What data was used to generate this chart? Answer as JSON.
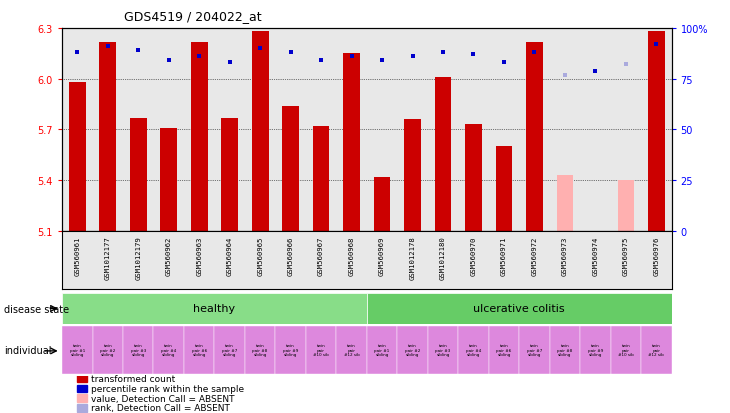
{
  "title": "GDS4519 / 204022_at",
  "samples": [
    "GSM560961",
    "GSM1012177",
    "GSM1012179",
    "GSM560962",
    "GSM560963",
    "GSM560964",
    "GSM560965",
    "GSM560966",
    "GSM560967",
    "GSM560968",
    "GSM560969",
    "GSM1012178",
    "GSM1012180",
    "GSM560970",
    "GSM560971",
    "GSM560972",
    "GSM560973",
    "GSM560974",
    "GSM560975",
    "GSM560976"
  ],
  "bar_values": [
    5.98,
    6.22,
    5.77,
    5.71,
    6.22,
    5.77,
    6.28,
    5.84,
    5.72,
    6.15,
    5.42,
    5.76,
    6.01,
    5.73,
    5.6,
    6.22,
    5.43,
    5.1,
    5.4,
    6.28
  ],
  "bar_absent": [
    false,
    false,
    false,
    false,
    false,
    false,
    false,
    false,
    false,
    false,
    false,
    false,
    false,
    false,
    false,
    false,
    true,
    true,
    true,
    false
  ],
  "rank_values": [
    88,
    91,
    89,
    84,
    86,
    83,
    90,
    88,
    84,
    86,
    84,
    86,
    88,
    87,
    83,
    88,
    77,
    79,
    82,
    92
  ],
  "rank_absent": [
    false,
    false,
    false,
    false,
    false,
    false,
    false,
    false,
    false,
    false,
    false,
    false,
    false,
    false,
    false,
    false,
    true,
    false,
    true,
    false
  ],
  "ylim": [
    5.1,
    6.3
  ],
  "yticks": [
    5.1,
    5.4,
    5.7,
    6.0,
    6.3
  ],
  "right_yticks": [
    0,
    25,
    50,
    75,
    100
  ],
  "right_ylim": [
    0,
    100
  ],
  "bar_color": "#cc0000",
  "bar_absent_color": "#ffb0b0",
  "rank_color": "#0000cc",
  "rank_absent_color": "#aaaadd",
  "disease_healthy_color": "#88dd88",
  "disease_uc_color": "#66cc66",
  "individual_color": "#dd88dd",
  "bg_color": "#e8e8e8",
  "healthy_count": 10,
  "disease_label_healthy": "healthy",
  "disease_label_uc": "ulcerative colitis",
  "individual_labels": [
    "twin\npair #1\nsibling",
    "twin\npair #2\nsibling",
    "twin\npair #3\nsibling",
    "twin\npair #4\nsibling",
    "twin\npair #6\nsibling",
    "twin\npair #7\nsibling",
    "twin\npair #8\nsibling",
    "twin\npair #9\nsibling",
    "twin\npair\n#10 sib",
    "twin\npair\n#12 sib",
    "twin\npair #1\nsibling",
    "twin\npair #2\nsibling",
    "twin\npair #3\nsibling",
    "twin\npair #4\nsibling",
    "twin\npair #6\nsibling",
    "twin\npair #7\nsibling",
    "twin\npair #8\nsibling",
    "twin\npair #9\nsibling",
    "twin\npair\n#10 sib",
    "twin\npair\n#12 sib"
  ],
  "legend_items": [
    {
      "color": "#cc0000",
      "label": "transformed count"
    },
    {
      "color": "#0000cc",
      "label": "percentile rank within the sample"
    },
    {
      "color": "#ffb0b0",
      "label": "value, Detection Call = ABSENT"
    },
    {
      "color": "#aaaadd",
      "label": "rank, Detection Call = ABSENT"
    }
  ]
}
